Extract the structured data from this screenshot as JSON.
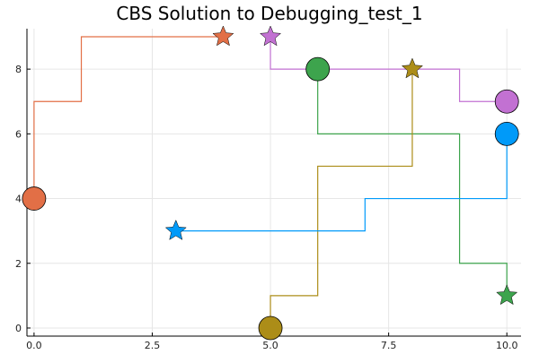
{
  "chart_data": {
    "type": "line",
    "title": "CBS Solution to Debugging_test_1",
    "xlabel": "",
    "ylabel": "",
    "xlim": [
      -0.15,
      10.3
    ],
    "ylim": [
      -0.25,
      9.25
    ],
    "xticks": [
      0.0,
      2.5,
      5.0,
      7.5,
      10.0
    ],
    "xtick_labels": [
      "0.0",
      "2.5",
      "5.0",
      "7.5",
      "10.0"
    ],
    "yticks": [
      0,
      2,
      4,
      6,
      8
    ],
    "ytick_labels": [
      "0",
      "2",
      "4",
      "6",
      "8"
    ],
    "grid": true,
    "legend": "none",
    "series": [
      {
        "color": "#e26f46",
        "x": [
          0,
          0,
          1,
          1,
          4
        ],
        "y": [
          4,
          7,
          7,
          9,
          9
        ],
        "start": [
          0,
          4
        ],
        "goal": [
          4,
          9
        ]
      },
      {
        "color": "#3da44d",
        "x": [
          6,
          6,
          9,
          9,
          10,
          10
        ],
        "y": [
          8,
          6,
          6,
          2,
          2,
          1
        ],
        "start": [
          6,
          8
        ],
        "goal": [
          10,
          1
        ]
      },
      {
        "color": "#c271d2",
        "x": [
          10,
          9,
          9,
          5,
          5
        ],
        "y": [
          7,
          7,
          8,
          8,
          9
        ],
        "start": [
          10,
          7
        ],
        "goal": [
          5,
          9
        ]
      },
      {
        "color": "#ac8d18",
        "x": [
          5,
          5,
          6,
          6,
          8,
          8
        ],
        "y": [
          0,
          1,
          1,
          5,
          5,
          8
        ],
        "start": [
          5,
          0
        ],
        "goal": [
          8,
          8
        ]
      },
      {
        "color": "#009af9",
        "x": [
          10,
          10,
          7,
          7,
          3
        ],
        "y": [
          6,
          4,
          4,
          3,
          3
        ],
        "start": [
          10,
          6
        ],
        "goal": [
          3,
          3
        ]
      }
    ]
  }
}
